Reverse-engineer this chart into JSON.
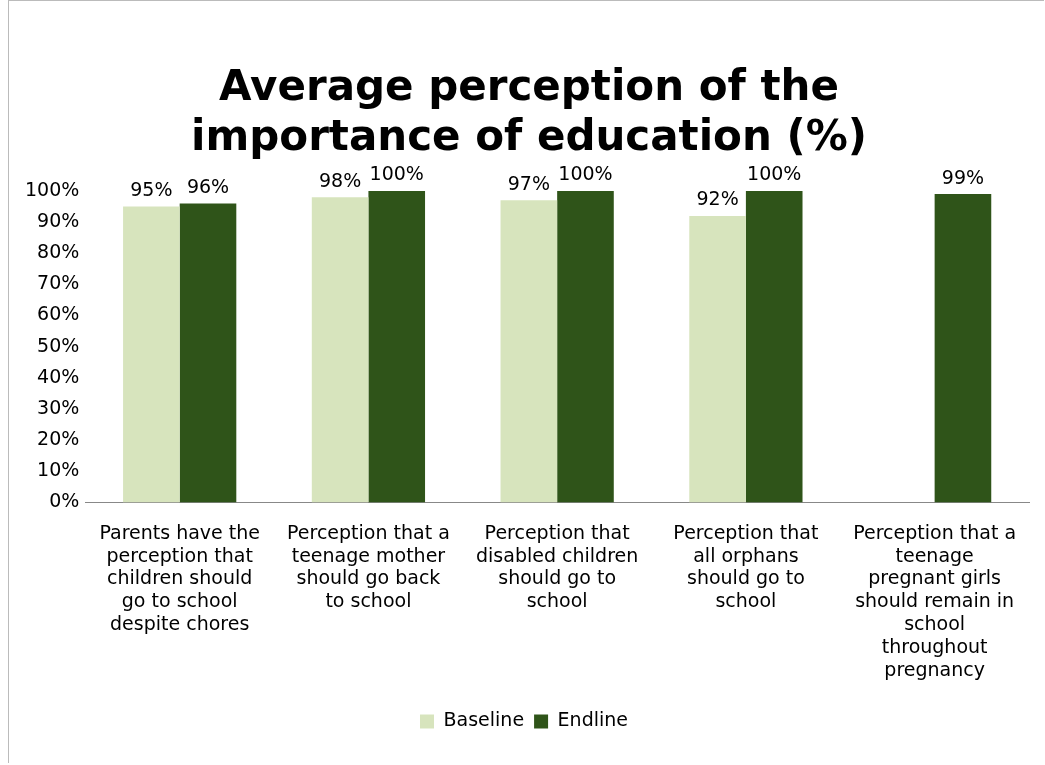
{
  "chart_data": {
    "type": "bar",
    "title": "Average perception of the importance of education (%)",
    "categories": [
      "Parents have the perception that children should go to school despite chores",
      "Perception that a teenage mother should go back to school",
      "Perception that disabled children should go to school",
      "Perception that all orphans should go to school",
      "Perception that a teenage pregnant girls should remain in school throughout pregnancy"
    ],
    "series": [
      {
        "name": "Baseline",
        "color": "#d7e4bd",
        "values": [
          95,
          98,
          97,
          92,
          null
        ],
        "value_labels": [
          "95%",
          "98%",
          "97%",
          "92%",
          null
        ]
      },
      {
        "name": "Endline",
        "color": "#2f5419",
        "values": [
          96,
          100,
          100,
          100,
          99
        ],
        "value_labels": [
          "96%",
          "100%",
          "100%",
          "100%",
          "99%"
        ]
      }
    ],
    "ylim": [
      0,
      100
    ],
    "yticks": [
      {
        "value": 0,
        "label": "0%"
      },
      {
        "value": 10,
        "label": "10%"
      },
      {
        "value": 20,
        "label": "20%"
      },
      {
        "value": 30,
        "label": "30%"
      },
      {
        "value": 40,
        "label": "40%"
      },
      {
        "value": 50,
        "label": "50%"
      },
      {
        "value": 60,
        "label": "60%"
      },
      {
        "value": 70,
        "label": "70%"
      },
      {
        "value": 80,
        "label": "80%"
      },
      {
        "value": 90,
        "label": "90%"
      },
      {
        "value": 100,
        "label": "100%"
      }
    ],
    "grid": false,
    "legend": "bottom"
  }
}
